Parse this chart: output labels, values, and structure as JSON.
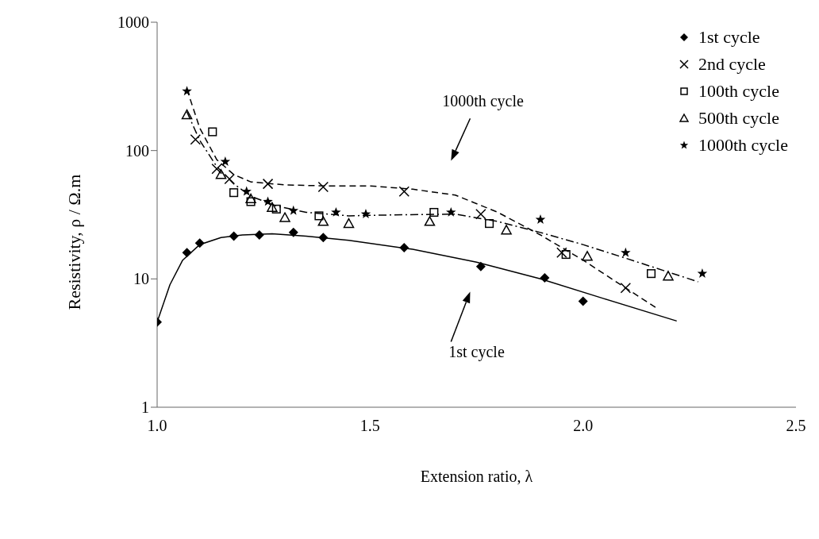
{
  "chart_data": {
    "type": "scatter",
    "xlabel": "Extension ratio, λ",
    "ylabel": "Resistivity, ρ / Ω.m",
    "log": "y",
    "grid": false,
    "legend": "top right",
    "xlim": [
      1,
      2.5
    ],
    "xticks": [
      {
        "value": 1,
        "label": "1.0"
      },
      {
        "value": 1.5,
        "label": "1.5"
      },
      {
        "value": 2,
        "label": "2.0"
      },
      {
        "value": 2.5,
        "label": "2.5"
      }
    ],
    "ylim": [
      1,
      1000
    ],
    "yticks": [
      1,
      10,
      100,
      1000
    ],
    "annotations": [
      "1000th cycle",
      "1st cycle"
    ],
    "series": [
      {
        "name": "1st cycle",
        "color": "#000000",
        "marker": "diamond",
        "x": [
          1.0,
          1.07,
          1.1,
          1.18,
          1.24,
          1.32,
          1.39,
          1.58,
          1.76,
          1.91,
          2.0
        ],
        "values": [
          4.6,
          16,
          19,
          21.5,
          22,
          23,
          21,
          17.5,
          12.5,
          10.2,
          6.7
        ]
      },
      {
        "name": "2nd cycle",
        "color": "#000000",
        "marker": "cross",
        "x": [
          1.09,
          1.14,
          1.17,
          1.26,
          1.39,
          1.58,
          1.76,
          1.95,
          2.1
        ],
        "values": [
          122,
          72,
          60,
          55,
          52,
          48,
          32,
          16,
          8.5
        ]
      },
      {
        "name": "100th cycle",
        "color": "#000000",
        "marker": "square",
        "x": [
          1.13,
          1.18,
          1.22,
          1.28,
          1.38,
          1.65,
          1.78,
          1.96,
          2.16
        ],
        "values": [
          140,
          47,
          40,
          35,
          31,
          33,
          27,
          15.5,
          11
        ]
      },
      {
        "name": "500th cycle",
        "color": "#000000",
        "marker": "triangle",
        "x": [
          1.07,
          1.15,
          1.22,
          1.27,
          1.3,
          1.39,
          1.45,
          1.64,
          1.82,
          2.01,
          2.2
        ],
        "values": [
          190,
          65,
          42,
          36,
          30,
          28,
          27,
          28,
          24,
          15,
          10.5
        ]
      },
      {
        "name": "1000th cycle",
        "color": "#000000",
        "marker": "star",
        "x": [
          1.07,
          1.16,
          1.21,
          1.26,
          1.32,
          1.42,
          1.49,
          1.69,
          1.9,
          2.1,
          2.28
        ],
        "values": [
          290,
          82,
          48,
          40,
          34,
          33,
          32,
          33,
          29,
          16,
          11
        ]
      },
      {
        "type": "line",
        "color": "#000000",
        "line_style": "solid",
        "marker": "none",
        "x": [
          1.0,
          1.03,
          1.06,
          1.1,
          1.15,
          1.2,
          1.27,
          1.35,
          1.45,
          1.6,
          1.75,
          1.9,
          2.05,
          2.22
        ],
        "values": [
          4.6,
          9,
          14,
          18.5,
          21,
          22,
          22.5,
          21.5,
          20,
          17,
          13.5,
          10,
          7,
          4.7
        ]
      },
      {
        "type": "line",
        "color": "#000000",
        "line_style": "dashed",
        "marker": "none",
        "x": [
          1.07,
          1.1,
          1.14,
          1.18,
          1.22,
          1.3,
          1.4,
          1.5,
          1.6,
          1.7,
          1.8,
          1.9,
          2.0,
          2.1,
          2.17
        ],
        "values": [
          300,
          150,
          85,
          65,
          57,
          54,
          53,
          53,
          50,
          45,
          33,
          22,
          14,
          8.5,
          6
        ]
      },
      {
        "type": "line",
        "color": "#000000",
        "line_style": "dotted",
        "marker": "none",
        "x": [
          1.07,
          1.1,
          1.14,
          1.18,
          1.22,
          1.28,
          1.35,
          1.45,
          1.55,
          1.7,
          1.8,
          1.9,
          2.0,
          2.1,
          2.27
        ],
        "values": [
          200,
          120,
          75,
          55,
          44,
          37,
          33,
          31,
          31.5,
          32,
          28,
          23,
          18.5,
          14.5,
          9.5
        ]
      }
    ]
  }
}
